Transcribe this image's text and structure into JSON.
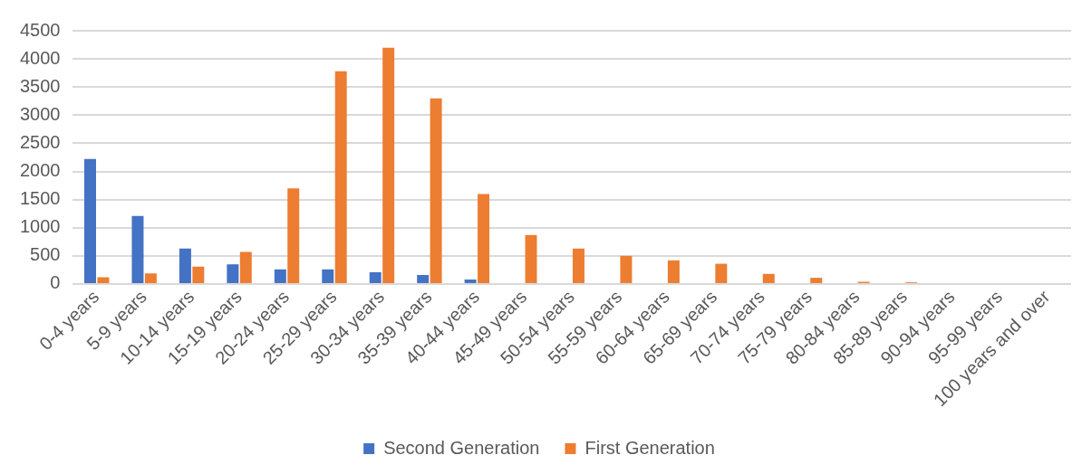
{
  "chart_data": {
    "type": "bar",
    "categories": [
      "0-4 years",
      "5-9 years",
      "10-14 years",
      "15-19 years",
      "20-24 years",
      "25-29 years",
      "30-34 years",
      "35-39 years",
      "40-44 years",
      "45-49 years",
      "50-54 years",
      "55-59 years",
      "60-64 years",
      "65-69 years",
      "70-74 years",
      "75-79 years",
      "80-84 years",
      "85-89 years",
      "90-94 years",
      "95-99 years",
      "100 years and over"
    ],
    "series": [
      {
        "name": "Second Generation",
        "color": "#4472c4",
        "values": [
          2220,
          1210,
          630,
          350,
          260,
          260,
          210,
          160,
          80,
          0,
          0,
          0,
          0,
          0,
          0,
          0,
          0,
          0,
          0,
          0,
          0
        ]
      },
      {
        "name": "First Generation",
        "color": "#ed7d31",
        "values": [
          120,
          190,
          310,
          570,
          1700,
          3780,
          4200,
          3300,
          1600,
          870,
          630,
          500,
          420,
          360,
          180,
          110,
          40,
          30,
          0,
          0,
          0
        ]
      }
    ],
    "ylim": [
      0,
      4500
    ],
    "yticks": [
      0,
      500,
      1000,
      1500,
      2000,
      2500,
      3000,
      3500,
      4000,
      4500
    ],
    "grid": "y",
    "legend": "bottom"
  }
}
